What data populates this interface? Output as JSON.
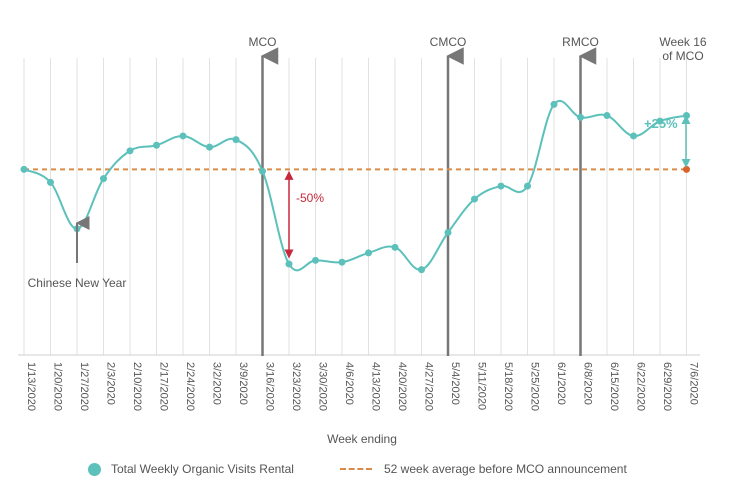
{
  "chart_data": {
    "type": "line",
    "title": "",
    "xlabel": "Week ending",
    "ylabel": "",
    "categories": [
      "1/13/2020",
      "1/20/2020",
      "1/27/2020",
      "2/3/2020",
      "2/10/2020",
      "2/17/2020",
      "2/24/2020",
      "3/2/2020",
      "3/9/2020",
      "3/16/2020",
      "3/23/2020",
      "3/30/2020",
      "4/6/2020",
      "4/13/2020",
      "4/20/2020",
      "4/27/2020",
      "5/4/2020",
      "5/11/2020",
      "5/18/2020",
      "5/25/2020",
      "6/1/2020",
      "6/8/2020",
      "6/15/2020",
      "6/22/2020",
      "6/29/2020",
      "7/6/2020"
    ],
    "series": [
      {
        "name": "Total Weekly Organic Visits Rental",
        "color": "#5cc0bb",
        "values": [
          100,
          93,
          68,
          95,
          110,
          113,
          118,
          112,
          116,
          99,
          49,
          51,
          50,
          55,
          58,
          46,
          66,
          84,
          91,
          91,
          135,
          128,
          129,
          118,
          126,
          129
        ]
      }
    ],
    "reference_line": {
      "name": "52 week average before MCO announcement",
      "value": 100,
      "color": "#d98c4a",
      "style": "dashed"
    },
    "ylim": [
      0,
      160
    ],
    "y_axis_shown": false,
    "grid": "vertical",
    "legend": "bottom",
    "events": [
      {
        "label": "MCO",
        "category": "3/16/2020"
      },
      {
        "label": "CMCO",
        "category": "5/4/2020"
      },
      {
        "label": "RMCO",
        "category": "6/8/2020"
      }
    ],
    "annotations": {
      "week16_line1": "Week 16",
      "week16_line2": "of MCO",
      "cny": "Chinese New Year",
      "drop": "-50%",
      "rise": "+25%"
    },
    "colors": {
      "drop": "#c8283c",
      "rise": "#5cc0bb",
      "event_line": "#777777",
      "grid": "#e2e2e2",
      "text": "#555555"
    }
  }
}
